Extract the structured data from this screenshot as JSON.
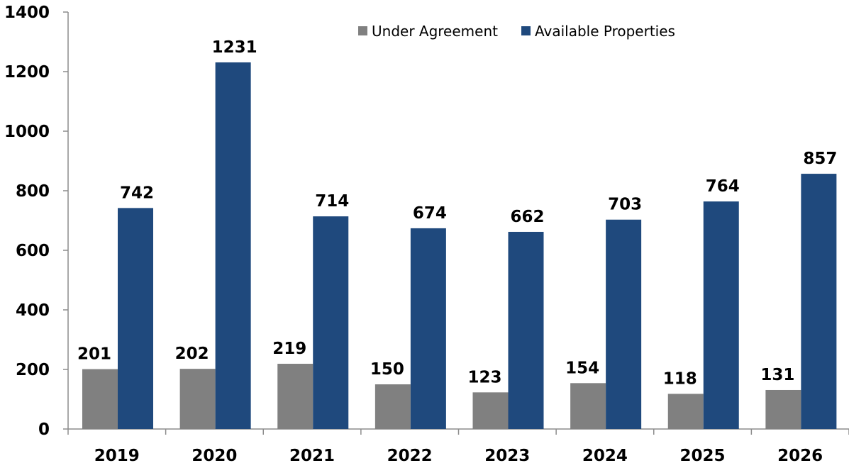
{
  "chart_data": {
    "type": "bar",
    "title": "",
    "xlabel": "",
    "ylabel": "",
    "categories": [
      "2019",
      "2020",
      "2021",
      "2022",
      "2023",
      "2024",
      "2025",
      "2026"
    ],
    "series": [
      {
        "name": "Under Agreement",
        "color": "#808080",
        "values": [
          201,
          202,
          219,
          150,
          123,
          154,
          118,
          131
        ]
      },
      {
        "name": "Available Properties",
        "color": "#1F497D",
        "values": [
          742,
          1231,
          714,
          674,
          662,
          703,
          764,
          857
        ]
      }
    ],
    "ylim": [
      0,
      1400
    ],
    "yticks": [
      0,
      200,
      400,
      600,
      800,
      1000,
      1200,
      1400
    ],
    "grid": false,
    "legend_position": "top-right"
  }
}
